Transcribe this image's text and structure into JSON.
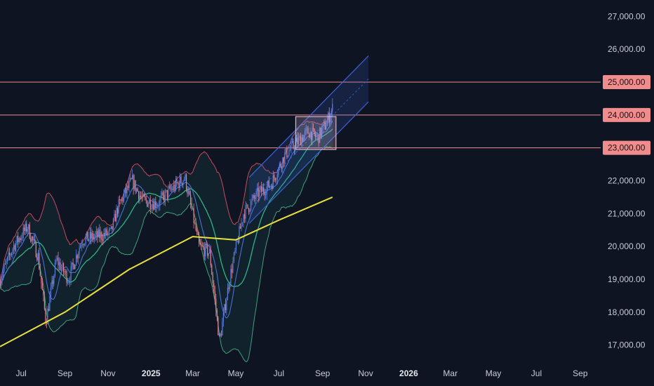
{
  "chart_data": {
    "type": "candlestick",
    "title": "",
    "xlabel": "",
    "ylabel": "",
    "ylim": [
      16500,
      27500
    ],
    "xlim": [
      "2024-06-01",
      "2026-09-30"
    ],
    "grid": false,
    "colors": {
      "background": "#0f1422",
      "up_candle": "#5a7de0",
      "down_candle": "#e08090",
      "level_line": "#f08c8c",
      "level_label_bg": "#f08c8c",
      "sma_long": "#e8df3a",
      "band_mid": "#2fbf8f",
      "band_upper": "#c8485e",
      "band_lower": "#3fa07a",
      "fast_ma": "#4a6fd8",
      "channel": "#3b63d8",
      "range_box": "#d9b8c8"
    },
    "y_ticks": [
      {
        "value": 17000,
        "label": "17,000.00"
      },
      {
        "value": 18000,
        "label": "18,000.00"
      },
      {
        "value": 19000,
        "label": "19,000.00"
      },
      {
        "value": 20000,
        "label": "20,000.00"
      },
      {
        "value": 21000,
        "label": "21,000.00"
      },
      {
        "value": 22000,
        "label": "22,000.00"
      },
      {
        "value": 23000,
        "label": "23,000.00"
      },
      {
        "value": 24000,
        "label": "24,000.00"
      },
      {
        "value": 25000,
        "label": "25,000.00"
      },
      {
        "value": 26000,
        "label": "26,000.00"
      },
      {
        "value": 27000,
        "label": "27,000.00"
      }
    ],
    "x_ticks": [
      {
        "date": "2024-07-01",
        "label": "Jul",
        "bold": false
      },
      {
        "date": "2024-09-01",
        "label": "Sep",
        "bold": false
      },
      {
        "date": "2024-11-01",
        "label": "Nov",
        "bold": false
      },
      {
        "date": "2025-01-01",
        "label": "2025",
        "bold": true
      },
      {
        "date": "2025-03-01",
        "label": "Mar",
        "bold": false
      },
      {
        "date": "2025-05-01",
        "label": "May",
        "bold": false
      },
      {
        "date": "2025-07-01",
        "label": "Jul",
        "bold": false
      },
      {
        "date": "2025-09-01",
        "label": "Sep",
        "bold": false
      },
      {
        "date": "2025-11-01",
        "label": "Nov",
        "bold": false
      },
      {
        "date": "2026-01-01",
        "label": "2026",
        "bold": true
      },
      {
        "date": "2026-03-01",
        "label": "Mar",
        "bold": false
      },
      {
        "date": "2026-05-01",
        "label": "May",
        "bold": false
      },
      {
        "date": "2026-07-01",
        "label": "Jul",
        "bold": false
      },
      {
        "date": "2026-09-01",
        "label": "Sep",
        "bold": false
      }
    ],
    "levels": [
      {
        "value": 25000,
        "label": "25,000.00"
      },
      {
        "value": 24000,
        "label": "24,000.00"
      },
      {
        "value": 23000,
        "label": "23,000.00"
      }
    ],
    "close_series": [
      {
        "date": "2024-06-01",
        "close": 19000
      },
      {
        "date": "2024-06-20",
        "close": 20000
      },
      {
        "date": "2024-07-10",
        "close": 20600
      },
      {
        "date": "2024-07-25",
        "close": 19700
      },
      {
        "date": "2024-08-05",
        "close": 17700
      },
      {
        "date": "2024-08-20",
        "close": 19600
      },
      {
        "date": "2024-09-06",
        "close": 19000
      },
      {
        "date": "2024-09-25",
        "close": 20200
      },
      {
        "date": "2024-10-15",
        "close": 20300
      },
      {
        "date": "2024-11-05",
        "close": 20400
      },
      {
        "date": "2024-11-15",
        "close": 21200
      },
      {
        "date": "2024-12-05",
        "close": 22000
      },
      {
        "date": "2024-12-20",
        "close": 21400
      },
      {
        "date": "2025-01-10",
        "close": 21300
      },
      {
        "date": "2025-01-28",
        "close": 21700
      },
      {
        "date": "2025-02-18",
        "close": 22100
      },
      {
        "date": "2025-03-10",
        "close": 20000
      },
      {
        "date": "2025-03-25",
        "close": 19800
      },
      {
        "date": "2025-04-08",
        "close": 17100
      },
      {
        "date": "2025-04-22",
        "close": 19000
      },
      {
        "date": "2025-05-12",
        "close": 21000
      },
      {
        "date": "2025-06-01",
        "close": 21600
      },
      {
        "date": "2025-06-20",
        "close": 21900
      },
      {
        "date": "2025-07-10",
        "close": 22800
      },
      {
        "date": "2025-07-28",
        "close": 23200
      },
      {
        "date": "2025-08-12",
        "close": 23500
      },
      {
        "date": "2025-08-25",
        "close": 23300
      },
      {
        "date": "2025-09-05",
        "close": 23700
      },
      {
        "date": "2025-09-15",
        "close": 24200
      }
    ],
    "sma_long": [
      {
        "date": "2024-06-01",
        "value": 16950
      },
      {
        "date": "2024-09-01",
        "value": 18000
      },
      {
        "date": "2024-12-01",
        "value": 19300
      },
      {
        "date": "2025-03-01",
        "value": 20300
      },
      {
        "date": "2025-05-01",
        "value": 20200
      },
      {
        "date": "2025-07-01",
        "value": 20800
      },
      {
        "date": "2025-09-15",
        "value": 21500
      }
    ],
    "channel": {
      "start_date": "2025-05-20",
      "start_center": 21400,
      "end_date": "2025-11-05",
      "end_center": 25100,
      "half_width": 700
    },
    "range_box": {
      "start_date": "2025-07-25",
      "end_date": "2025-09-20",
      "low": 22950,
      "high": 23950
    }
  }
}
